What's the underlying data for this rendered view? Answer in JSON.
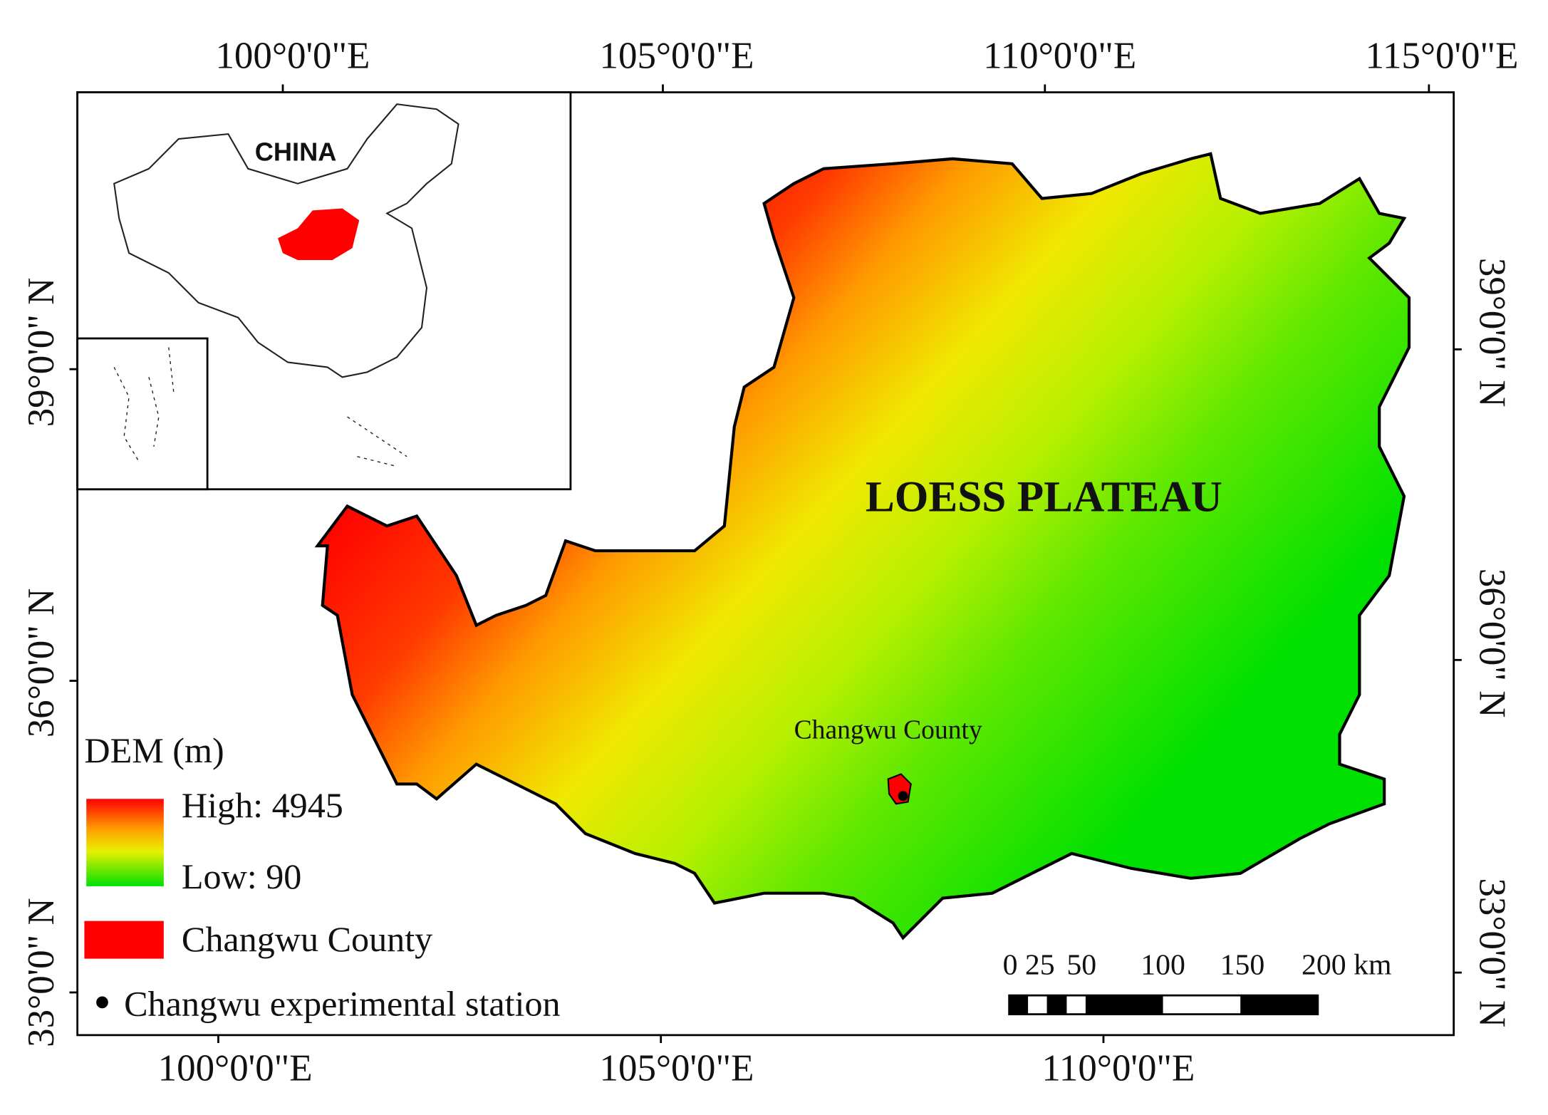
{
  "map": {
    "top_labels": [
      "100°0'0\"E",
      "105°0'0\"E",
      "110°0'0\"E",
      "115°0'0\"E"
    ],
    "bottom_labels": [
      "100°0'0\"E",
      "105°0'0\"E",
      "110°0'0\"E"
    ],
    "left_labels": [
      "39°0'0\" N",
      "36°0'0\" N",
      "33°0'0\" N"
    ],
    "right_labels": [
      "39°0'0\" N",
      "36°0'0\" N",
      "33°0'0\" N"
    ],
    "inset": {
      "label": "CHINA"
    },
    "region_label": "LOESS PLATEAU",
    "site_label": "Changwu County",
    "legend": {
      "title": "DEM (m)",
      "high": "High: 4945",
      "low": "Low: 90",
      "county": "Changwu County",
      "station": "Changwu experimental station"
    },
    "scale_bar": {
      "labels": [
        "0",
        "25",
        "50",
        "100",
        "150",
        "200 km"
      ]
    }
  }
}
